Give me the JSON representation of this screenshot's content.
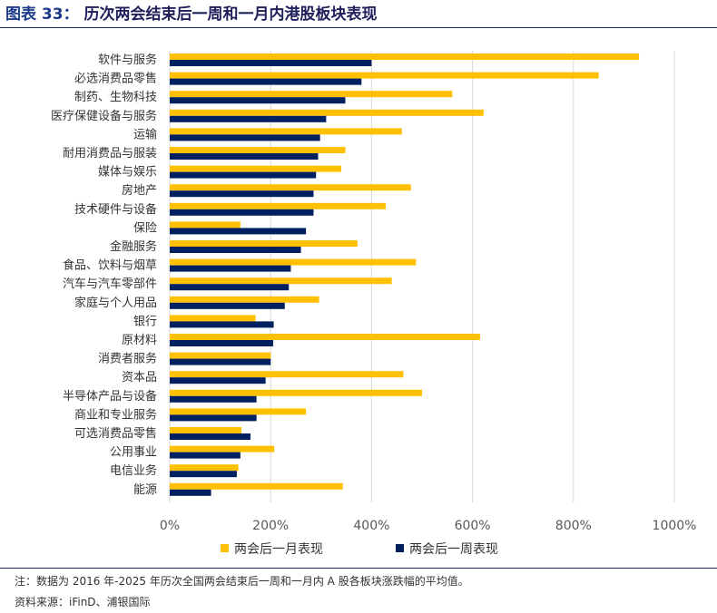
{
  "header": {
    "figure_label": "图表",
    "figure_number": "33：",
    "title": "历次两会结束后一周和一月内港股板块表现"
  },
  "footer": {
    "note": "注：数据为 2016 年-2025 年历次全国两会结束后一周和一月内 A 股各板块涨跌幅的平均值。",
    "source": "资料来源：iFinD、浦银国际"
  },
  "colors": {
    "month": "#ffc000",
    "week": "#002060",
    "grid": "#d9d9d9",
    "rule": "#1f2d6b"
  },
  "chart_data": {
    "type": "bar",
    "orientation": "horizontal",
    "categories": [
      "软件与服务",
      "必选消费品零售",
      "制药、生物科技",
      "医疗保健设备与服务",
      "运输",
      "耐用消费品与服装",
      "媒体与娱乐",
      "房地产",
      "技术硬件与设备",
      "保险",
      "金融服务",
      "食品、饮料与烟草",
      "汽车与汽车零部件",
      "家庭与个人用品",
      "银行",
      "原材料",
      "消费者服务",
      "资本品",
      "半导体产品与设备",
      "商业和专业服务",
      "可选消费品零售",
      "公用事业",
      "电信业务",
      "能源"
    ],
    "series": [
      {
        "name": "两会后一月表现",
        "values": [
          930,
          850,
          560,
          622,
          460,
          348,
          340,
          478,
          428,
          140,
          372,
          488,
          440,
          296,
          170,
          615,
          200,
          463,
          500,
          270,
          142,
          207,
          136,
          343
        ]
      },
      {
        "name": "两会后一周表现",
        "values": [
          400,
          380,
          348,
          310,
          298,
          294,
          290,
          285,
          285,
          270,
          260,
          240,
          236,
          228,
          206,
          205,
          200,
          190,
          172,
          172,
          160,
          140,
          133,
          82
        ]
      }
    ],
    "xlim": [
      0,
      1000
    ],
    "xticks": [
      "0%",
      "200%",
      "400%",
      "600%",
      "800%",
      "1000%"
    ],
    "grid": "vertical",
    "legend_position": "bottom"
  }
}
